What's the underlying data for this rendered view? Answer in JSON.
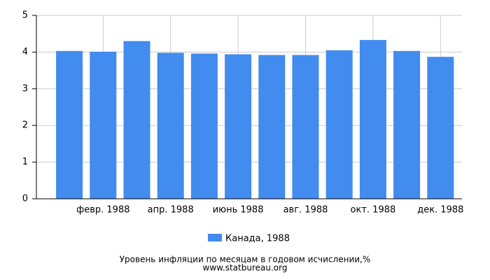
{
  "chart_data": {
    "type": "bar",
    "title": "Уровень инфляции по месяцам в годовом исчислении,%",
    "subtitle": "www.statbureau.org",
    "categories": [
      null,
      "февр. 1988",
      null,
      "апр. 1988",
      null,
      "июнь 1988",
      null,
      "авг. 1988",
      null,
      "окт. 1988",
      null,
      "дек. 1988"
    ],
    "series": [
      {
        "name": "Канада, 1988",
        "color": "#428bef",
        "values": [
          4.03,
          4.01,
          4.3,
          3.98,
          3.96,
          3.94,
          3.92,
          3.92,
          4.05,
          4.33,
          4.03,
          3.87
        ]
      }
    ],
    "ylim": [
      0,
      5
    ],
    "yticks": [
      0,
      1,
      2,
      3,
      4,
      5
    ],
    "grid": true
  }
}
